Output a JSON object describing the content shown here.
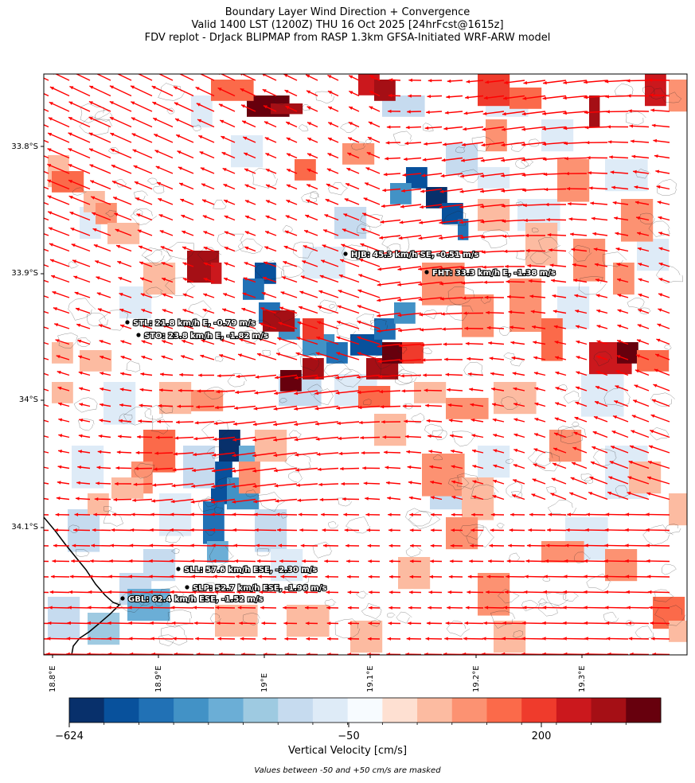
{
  "title": {
    "line1": "Boundary Layer Wind Direction + Convergence",
    "line2": "Valid 1400 LST (1200Z) THU 16 Oct 2025 [24hrFcst@1615z]",
    "line3": "FDV replot - DrJack BLIPMAP from RASP 1.3km GFSA-Initiated WRF-ARW model"
  },
  "axes": {
    "lat_labels": [
      "33.8°S",
      "33.9°S",
      "34°S",
      "34.1°S"
    ],
    "lon_labels": [
      "18.8°E",
      "18.9°E",
      "19°E",
      "19.1°E",
      "19.2°E",
      "19.3°E"
    ]
  },
  "stations": [
    {
      "code": "HJB",
      "label": "HJB: 45.3 km/h SE, -0.51 m/s"
    },
    {
      "code": "FHT",
      "label": "FHT: 33.3 km/h E, -1.38 m/s"
    },
    {
      "code": "STL",
      "label": "STL: 21.8 km/h E, -0.79 m/s"
    },
    {
      "code": "STO",
      "label": "STO: 23.8 km/h E, -1.82 m/s"
    },
    {
      "code": "SLL",
      "label": "SLL: 57.6 km/h ESE, -2.30 m/s"
    },
    {
      "code": "SLP",
      "label": "SLP: 52.7 km/h ESE, -1.96 m/s"
    },
    {
      "code": "GBL",
      "label": "GBL: 62.4 km/h ESE, -1.52 m/s"
    }
  ],
  "colorbar": {
    "label": "Vertical Velocity [cm/s]",
    "tick_labels": [
      "−624",
      "−50",
      "200"
    ],
    "colors": [
      "#08306b",
      "#08519c",
      "#2171b5",
      "#4292c6",
      "#6baed6",
      "#9ecae1",
      "#c6dbef",
      "#deebf7",
      "#f7fbff",
      "#fee0d2",
      "#fcbba1",
      "#fc9272",
      "#fb6a4a",
      "#ef3b2c",
      "#cb181d",
      "#a50f15",
      "#67000d"
    ]
  },
  "footnote": "Values between -50 and +50 cm/s are masked",
  "colors": {
    "wind_vector": "#ff0000",
    "contour": "#222222",
    "coastline": "#000000"
  }
}
